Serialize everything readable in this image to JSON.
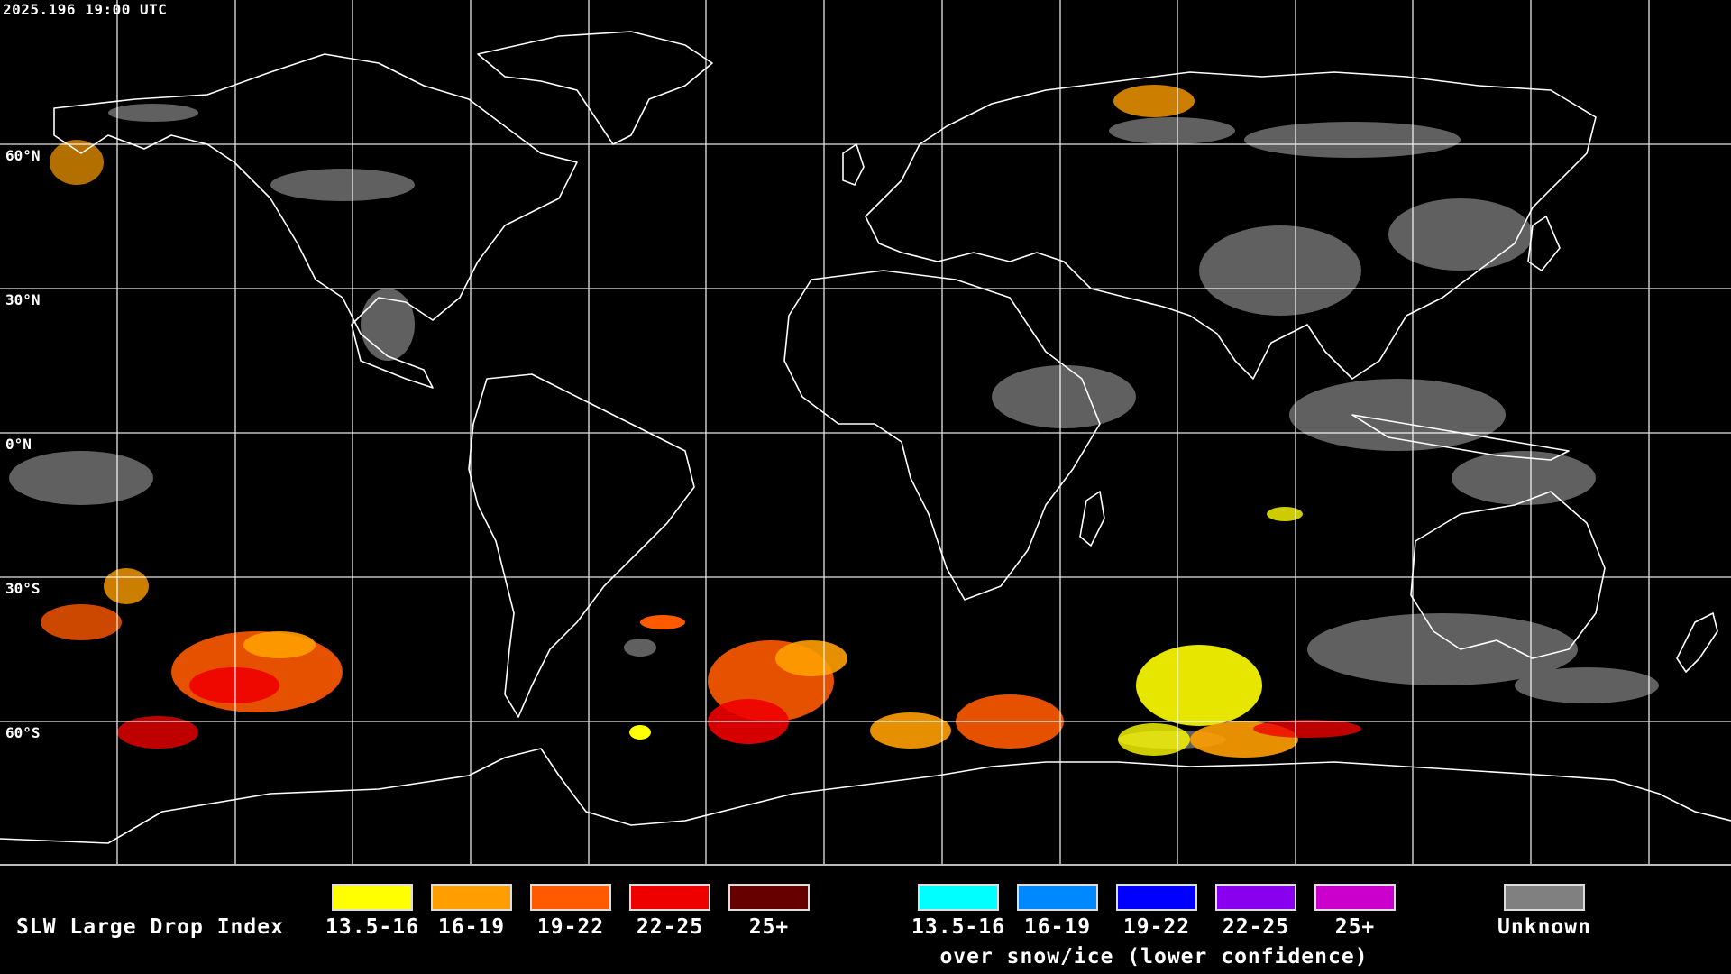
{
  "timestamp": "2025.196 19:00 UTC",
  "lat_labels": [
    "60°N",
    "30°N",
    "0°N",
    "30°S",
    "60°S"
  ],
  "colors": {
    "background": "#000000",
    "gridline": "#ffffff",
    "coastline": "#ffffff"
  },
  "legend": {
    "title": "SLW Large Drop Index",
    "liquid": [
      {
        "label": "13.5-16",
        "color": "#ffff00"
      },
      {
        "label": "16-19",
        "color": "#ff9e00"
      },
      {
        "label": "19-22",
        "color": "#ff5a00"
      },
      {
        "label": "22-25",
        "color": "#ee0000"
      },
      {
        "label": "25+",
        "color": "#660000"
      }
    ],
    "snow_ice": [
      {
        "label": "13.5-16",
        "color": "#00ffff"
      },
      {
        "label": "16-19",
        "color": "#0088ff"
      },
      {
        "label": "19-22",
        "color": "#0000ff"
      },
      {
        "label": "22-25",
        "color": "#8800ee"
      },
      {
        "label": "25+",
        "color": "#cc00cc"
      }
    ],
    "snow_ice_caption": "over snow/ice (lower confidence)",
    "unknown": {
      "label": "Unknown",
      "color": "#808080"
    }
  }
}
